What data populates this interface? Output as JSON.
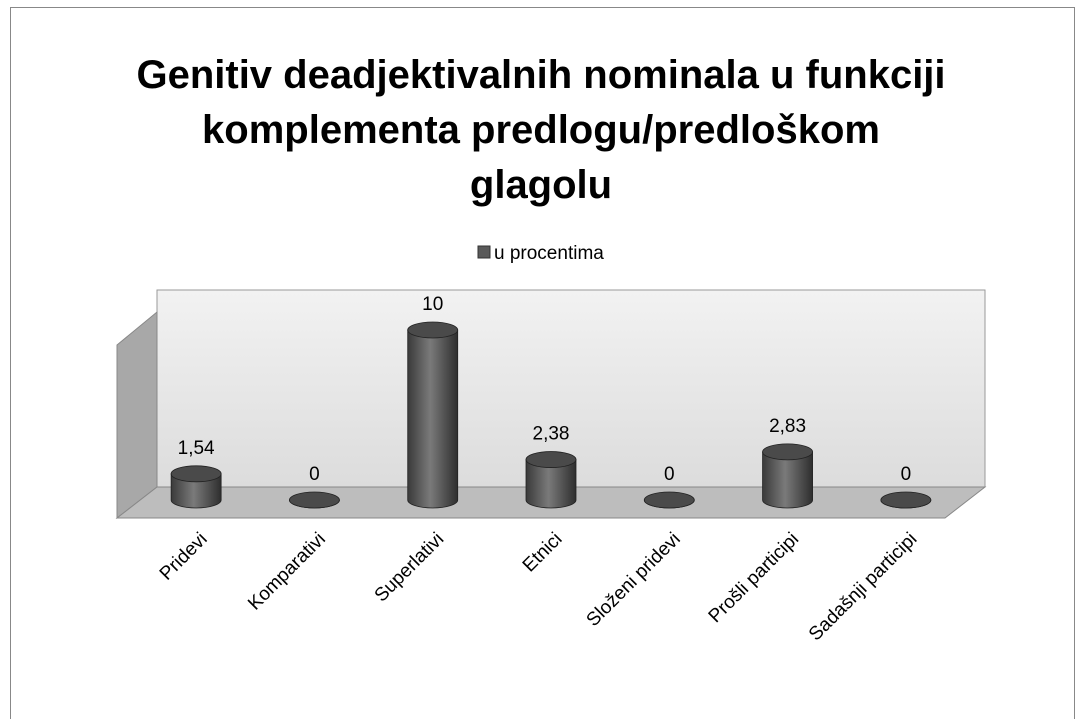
{
  "chart_data": {
    "type": "bar3d",
    "title": [
      "Genitiv deadjektivalnih nominala u funkciji",
      "komplementa predlogu/predloškom",
      "glagolu"
    ],
    "categories": [
      "Pridevi",
      "Komparativi",
      "Superlativi",
      "Etnici",
      "Složeni pridevi",
      "Prošli participi",
      "Sadašnji participi"
    ],
    "series": [
      {
        "name": "u procentima",
        "color": "#5a5a5a",
        "values": [
          1.54,
          0,
          10,
          2.38,
          0,
          2.83,
          0
        ],
        "value_labels": [
          "1,54",
          "0",
          "10",
          "2,38",
          "0",
          "2,83",
          "0"
        ]
      }
    ],
    "ylim": [
      0,
      12
    ],
    "legend": "top"
  }
}
